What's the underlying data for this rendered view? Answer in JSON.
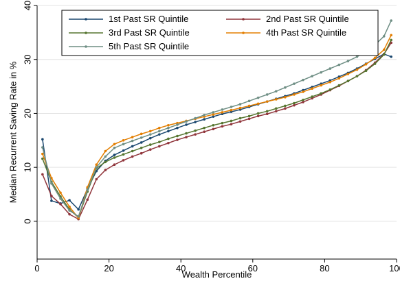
{
  "chart_data": {
    "type": "line",
    "title": "",
    "xlabel": "Wealth Percentile",
    "ylabel": "Median Recurrent Saving Rate in %",
    "xlim": [
      0,
      100
    ],
    "ylim": [
      -7,
      40
    ],
    "xticks": [
      0,
      20,
      40,
      60,
      80,
      100
    ],
    "yticks": [
      0,
      10,
      20,
      30,
      40
    ],
    "grid": true,
    "legend_position": "top",
    "series": [
      {
        "name": "1st Past SR Quintile",
        "color": "#1a476f",
        "x": [
          1.5,
          4,
          6.5,
          9,
          11.5,
          14,
          16.5,
          19,
          21.5,
          24,
          26.5,
          29,
          31.5,
          34,
          36.5,
          39,
          41.5,
          44,
          46.5,
          49,
          51.5,
          54,
          56.5,
          59,
          61.5,
          64,
          66.5,
          69,
          71.5,
          74,
          76.5,
          79,
          81.5,
          84,
          86.5,
          89,
          91.5,
          94,
          96.5,
          98.5
        ],
        "y": [
          15.2,
          3.8,
          3.3,
          3.9,
          2.2,
          6.0,
          9.3,
          11.2,
          12.3,
          13.1,
          13.9,
          14.6,
          15.4,
          16.1,
          16.7,
          17.3,
          17.9,
          18.4,
          18.9,
          19.4,
          19.9,
          20.3,
          20.7,
          21.2,
          21.7,
          22.2,
          22.7,
          23.2,
          23.7,
          24.3,
          24.9,
          25.5,
          26.1,
          26.8,
          27.5,
          28.3,
          29.2,
          30.1,
          31.0,
          30.5
        ]
      },
      {
        "name": "2nd Past SR Quintile",
        "color": "#90353b",
        "x": [
          1.5,
          4,
          6.5,
          9,
          11.5,
          14,
          16.5,
          19,
          21.5,
          24,
          26.5,
          29,
          31.5,
          34,
          36.5,
          39,
          41.5,
          44,
          46.5,
          49,
          51.5,
          54,
          56.5,
          59,
          61.5,
          64,
          66.5,
          69,
          71.5,
          74,
          76.5,
          79,
          81.5,
          84,
          86.5,
          89,
          91.5,
          94,
          96.5,
          98.5
        ],
        "y": [
          8.7,
          4.7,
          3.2,
          1.3,
          0.4,
          4.0,
          7.8,
          9.5,
          10.5,
          11.3,
          12.0,
          12.6,
          13.3,
          13.9,
          14.5,
          15.1,
          15.6,
          16.1,
          16.6,
          17.1,
          17.6,
          18.0,
          18.5,
          19.0,
          19.5,
          19.9,
          20.4,
          20.9,
          21.5,
          22.1,
          22.8,
          23.5,
          24.3,
          25.1,
          26.0,
          26.9,
          28.0,
          29.4,
          31.0,
          33.1
        ]
      },
      {
        "name": "3rd Past SR Quintile",
        "color": "#55752f",
        "x": [
          1.5,
          4,
          6.5,
          9,
          11.5,
          14,
          16.5,
          19,
          21.5,
          24,
          26.5,
          29,
          31.5,
          34,
          36.5,
          39,
          41.5,
          44,
          46.5,
          49,
          51.5,
          54,
          56.5,
          59,
          61.5,
          64,
          66.5,
          69,
          71.5,
          74,
          76.5,
          79,
          81.5,
          84,
          86.5,
          89,
          91.5,
          94,
          96.5,
          98.5
        ],
        "y": [
          11.6,
          7.3,
          4.6,
          2.2,
          0.7,
          5.5,
          9.8,
          11.0,
          11.8,
          12.4,
          13.0,
          13.6,
          14.2,
          14.7,
          15.3,
          15.8,
          16.3,
          16.8,
          17.3,
          17.8,
          18.2,
          18.6,
          19.1,
          19.5,
          20.0,
          20.4,
          20.9,
          21.4,
          21.9,
          22.5,
          23.1,
          23.7,
          24.4,
          25.2,
          26.0,
          26.9,
          27.9,
          29.2,
          30.9,
          33.6
        ]
      },
      {
        "name": "4th Past SR Quintile",
        "color": "#e37e00",
        "x": [
          1.5,
          4,
          6.5,
          9,
          11.5,
          14,
          16.5,
          19,
          21.5,
          24,
          26.5,
          29,
          31.5,
          34,
          36.5,
          39,
          41.5,
          44,
          46.5,
          49,
          51.5,
          54,
          56.5,
          59,
          61.5,
          64,
          66.5,
          69,
          71.5,
          74,
          76.5,
          79,
          81.5,
          84,
          86.5,
          89,
          91.5,
          94,
          96.5,
          98.5
        ],
        "y": [
          12.5,
          8.0,
          5.3,
          2.7,
          0.6,
          6.3,
          10.5,
          13.0,
          14.3,
          15.0,
          15.6,
          16.2,
          16.7,
          17.3,
          17.8,
          18.2,
          18.6,
          19.0,
          19.4,
          19.8,
          20.2,
          20.6,
          21.0,
          21.4,
          21.8,
          22.2,
          22.6,
          23.0,
          23.5,
          24.0,
          24.6,
          25.2,
          25.8,
          26.5,
          27.3,
          28.1,
          29.1,
          30.3,
          31.8,
          34.5
        ]
      },
      {
        "name": "5th Past SR Quintile",
        "color": "#6e8e84",
        "x": [
          1.5,
          4,
          6.5,
          9,
          11.5,
          14,
          16.5,
          19,
          21.5,
          24,
          26.5,
          29,
          31.5,
          34,
          36.5,
          39,
          41.5,
          44,
          46.5,
          49,
          51.5,
          54,
          56.5,
          59,
          61.5,
          64,
          66.5,
          69,
          71.5,
          74,
          76.5,
          79,
          81.5,
          84,
          86.5,
          89,
          91.5,
          94,
          96.5,
          98.5
        ],
        "y": [
          13.7,
          7.0,
          4.2,
          2.0,
          0.9,
          5.8,
          10.0,
          12.0,
          13.6,
          14.3,
          14.9,
          15.5,
          16.1,
          16.7,
          17.3,
          17.9,
          18.5,
          19.1,
          19.7,
          20.2,
          20.7,
          21.2,
          21.7,
          22.3,
          22.9,
          23.5,
          24.1,
          24.8,
          25.5,
          26.2,
          26.9,
          27.6,
          28.3,
          29.0,
          29.7,
          30.5,
          31.5,
          32.7,
          34.3,
          37.2
        ]
      }
    ]
  }
}
